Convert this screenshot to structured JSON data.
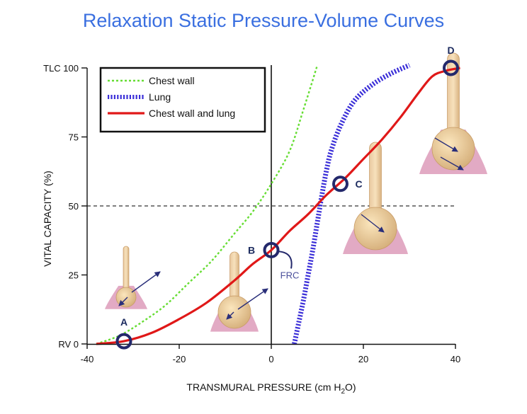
{
  "title": "Relaxation Static Pressure-Volume Curves",
  "chart_data": {
    "type": "line",
    "xlabel_main": "TRANSMURAL PRESSURE (cm H",
    "xlabel_sub": "2",
    "xlabel_end": "O)",
    "ylabel": "VITAL CAPACITY (%)",
    "xlim": [
      -40,
      40
    ],
    "ylim": [
      0,
      100
    ],
    "x_ticks": [
      -40,
      -20,
      0,
      20,
      40
    ],
    "y_ticks": [
      {
        "value": 0,
        "label": "RV 0"
      },
      {
        "value": 25,
        "label": "25"
      },
      {
        "value": 50,
        "label": "50"
      },
      {
        "value": 75,
        "label": "75"
      },
      {
        "value": 100,
        "label": "TLC 100"
      }
    ],
    "reference_line_y": 50,
    "series": [
      {
        "name": "Chest wall",
        "color": "#66dd33",
        "style": "dotted",
        "x": [
          -38,
          -33,
          -28,
          -23,
          -18,
          -13,
          -8,
          -4,
          0,
          4,
          7,
          10
        ],
        "y": [
          0,
          3,
          8,
          14,
          22,
          30,
          40,
          48,
          58,
          70,
          85,
          101
        ]
      },
      {
        "name": "Lung",
        "color": "#3b2fd8",
        "style": "hatched",
        "x": [
          5,
          6,
          7,
          8,
          9,
          10,
          11,
          12,
          13,
          15,
          18,
          22,
          26,
          30
        ],
        "y": [
          0,
          8,
          16,
          25,
          34,
          44,
          54,
          63,
          70,
          79,
          88,
          94,
          98,
          101
        ]
      },
      {
        "name": "Chest wall and lung",
        "color": "#e01818",
        "style": "solid",
        "x": [
          -38,
          -32,
          -26,
          -20,
          -14,
          -8,
          -4,
          0,
          4,
          8,
          12,
          16,
          20,
          24,
          28,
          32,
          35,
          38,
          41
        ],
        "y": [
          0,
          1,
          4,
          9,
          15,
          23,
          29,
          34,
          41,
          47,
          54,
          60,
          67,
          74,
          82,
          91,
          97,
          99,
          100
        ]
      }
    ],
    "points": [
      {
        "label": "A",
        "x": -32,
        "y": 1
      },
      {
        "label": "B",
        "x": 0,
        "y": 34
      },
      {
        "label": "C",
        "x": 15,
        "y": 58
      },
      {
        "label": "D",
        "x": 39,
        "y": 100
      }
    ],
    "annotation": "FRC",
    "legend_position": "top-left"
  }
}
